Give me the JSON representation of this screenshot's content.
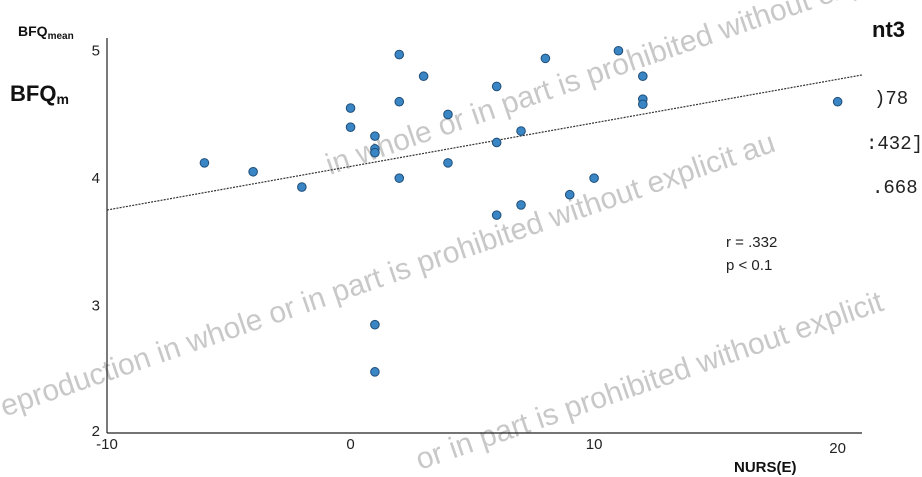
{
  "chart_data": {
    "type": "scatter",
    "ylabel_main": "BFQ",
    "ylabel_sub": "mean",
    "xlabel": "NURS(E)",
    "xlim": [
      -10,
      21
    ],
    "ylim": [
      2,
      5.1
    ],
    "xticks": [
      -10,
      0,
      10,
      20
    ],
    "yticks": [
      2,
      3,
      4,
      5
    ],
    "points": [
      {
        "x": -6,
        "y": 4.12
      },
      {
        "x": -4,
        "y": 4.05
      },
      {
        "x": -2,
        "y": 3.93
      },
      {
        "x": 0,
        "y": 4.55
      },
      {
        "x": 0,
        "y": 4.4
      },
      {
        "x": 1,
        "y": 4.33
      },
      {
        "x": 1,
        "y": 4.23
      },
      {
        "x": 1,
        "y": 4.2
      },
      {
        "x": 1,
        "y": 2.85
      },
      {
        "x": 1,
        "y": 2.48
      },
      {
        "x": 2,
        "y": 4.97
      },
      {
        "x": 2,
        "y": 4.6
      },
      {
        "x": 2,
        "y": 4.0
      },
      {
        "x": 3,
        "y": 4.8
      },
      {
        "x": 4,
        "y": 4.5
      },
      {
        "x": 4,
        "y": 4.12
      },
      {
        "x": 6,
        "y": 4.72
      },
      {
        "x": 6,
        "y": 4.28
      },
      {
        "x": 6,
        "y": 3.71
      },
      {
        "x": 7,
        "y": 4.37
      },
      {
        "x": 7,
        "y": 3.79
      },
      {
        "x": 8,
        "y": 4.94
      },
      {
        "x": 9,
        "y": 3.87
      },
      {
        "x": 10,
        "y": 4.0
      },
      {
        "x": 11,
        "y": 5.0
      },
      {
        "x": 12,
        "y": 4.8
      },
      {
        "x": 12,
        "y": 4.62
      },
      {
        "x": 12,
        "y": 4.58
      },
      {
        "x": 20,
        "y": 4.6
      }
    ],
    "trendline": {
      "x": [
        -10,
        21
      ],
      "y": [
        3.75,
        4.81
      ]
    },
    "annotation": {
      "r": "r = .332",
      "p": "p < 0.1"
    },
    "colors": {
      "point": "#3a86c4",
      "point_edge": "#1f4e79",
      "axis": "#222222",
      "trend": "#333333"
    }
  },
  "side_label": {
    "main": "BFQ",
    "sub": "m"
  },
  "cut_text": {
    "t1": "nt3",
    "t2": ")78",
    "t3": ":432]",
    "t4": ".668"
  },
  "watermark": {
    "text1": "reproduction in whole or in part is prohibited without explicit au",
    "text2": "in whole or in part is prohibited without explicit",
    "text3": "or in part is prohibited without explicit"
  }
}
